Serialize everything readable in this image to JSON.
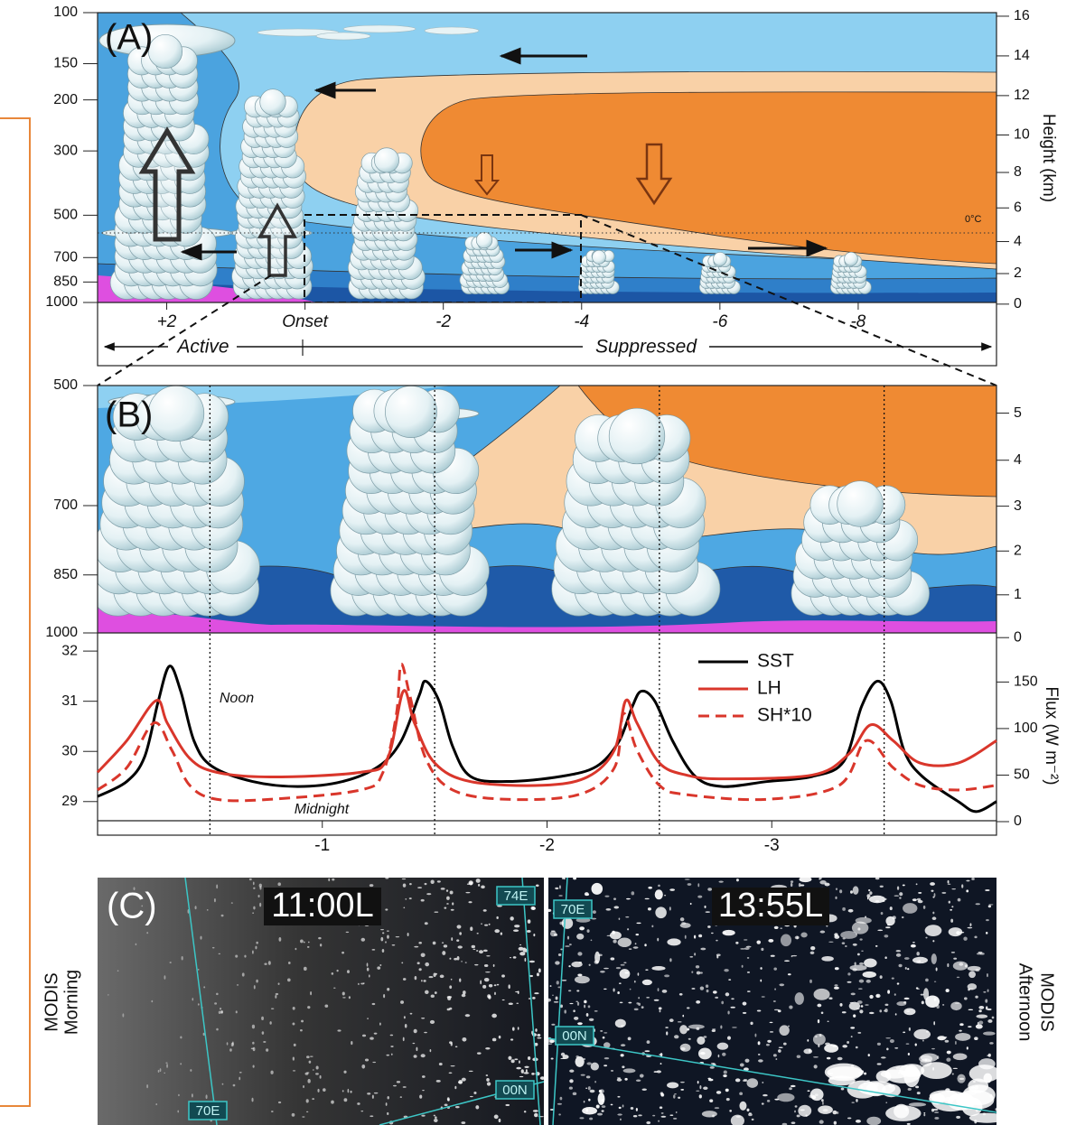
{
  "panel_a": {
    "label": "(A)",
    "pressure": {
      "lim": [
        100,
        1000
      ],
      "log": true,
      "ticks": [
        100,
        150,
        200,
        300,
        500,
        700,
        850,
        1000
      ]
    },
    "height": {
      "label": "Height (km)",
      "ticks": [
        0,
        2,
        4,
        6,
        8,
        10,
        12,
        14,
        16
      ]
    },
    "days": {
      "lim": [
        3,
        -10
      ],
      "ticks": [
        {
          "value": 2,
          "label": "+2"
        },
        {
          "value": 0,
          "label": "Onset"
        },
        -2,
        -4,
        -6,
        -8
      ]
    },
    "freezing_level": "0°C",
    "active": "Active",
    "suppressed": "Suppressed"
  },
  "panel_b": {
    "label": "(B)",
    "pressure": {
      "lim": [
        500,
        1000
      ],
      "log": true,
      "ticks": [
        500,
        700,
        850,
        1000
      ]
    },
    "height": {
      "ticks": [
        0,
        1,
        2,
        3,
        4,
        5
      ]
    }
  },
  "chart_data": {
    "type": "line",
    "y2label": "Flux (W m⁻²)",
    "xlim": [
      0,
      -4
    ],
    "xticks": [
      -1,
      -2,
      -3
    ],
    "ylim": [
      28.6,
      32.2
    ],
    "yticks": [
      29,
      30,
      31,
      32
    ],
    "y2lim": [
      0,
      194
    ],
    "y2ticks": [
      0,
      50,
      100,
      150
    ],
    "vlines": [
      -0.5,
      -1.5,
      -2.5,
      -3.5
    ],
    "annotations": [
      "Noon",
      "Midnight"
    ],
    "legend": "upper right",
    "series": [
      {
        "name": "SST",
        "color": "#000000",
        "linestyle": "solid",
        "x": [
          0,
          -0.13,
          -0.21,
          -0.27,
          -0.32,
          -0.37,
          -0.43,
          -0.51,
          -0.69,
          -0.89,
          -1.09,
          -1.25,
          -1.35,
          -1.43,
          -1.46,
          -1.52,
          -1.58,
          -1.66,
          -1.82,
          -2.06,
          -2.22,
          -2.32,
          -2.38,
          -2.42,
          -2.48,
          -2.56,
          -2.66,
          -2.78,
          -2.98,
          -3.18,
          -3.32,
          -3.4,
          -3.47,
          -3.53,
          -3.59,
          -3.67,
          -3.83,
          -3.91,
          -4.0
        ],
        "values": [
          29.1,
          29.4,
          29.9,
          31.0,
          31.7,
          31.2,
          30.2,
          29.7,
          29.4,
          29.3,
          29.4,
          29.7,
          30.2,
          31.1,
          31.4,
          31.0,
          30.1,
          29.5,
          29.4,
          29.5,
          29.7,
          30.2,
          30.9,
          31.2,
          31.0,
          30.2,
          29.5,
          29.3,
          29.4,
          29.5,
          29.8,
          30.9,
          31.4,
          31.0,
          30.0,
          29.5,
          29.0,
          28.8,
          29.0
        ]
      },
      {
        "name": "LH",
        "color": "#d9362b",
        "linestyle": "solid",
        "axis": "y2",
        "x": [
          0,
          -0.13,
          -0.26,
          -0.31,
          -0.41,
          -0.53,
          -0.77,
          -1.17,
          -1.29,
          -1.36,
          -1.41,
          -1.5,
          -1.66,
          -1.98,
          -2.18,
          -2.3,
          -2.35,
          -2.4,
          -2.5,
          -2.62,
          -2.78,
          -3.18,
          -3.34,
          -3.44,
          -3.54,
          -3.66,
          -3.83,
          -4.0
        ],
        "values": [
          53,
          87,
          130,
          106,
          68,
          53,
          48,
          53,
          68,
          140,
          106,
          63,
          43,
          39,
          48,
          77,
          130,
          106,
          63,
          50,
          46,
          50,
          72,
          104,
          87,
          63,
          63,
          87
        ]
      },
      {
        "name": "SH*10",
        "color": "#d9362b",
        "linestyle": "dashed",
        "axis": "y2",
        "x": [
          0,
          -0.13,
          -0.25,
          -0.33,
          -0.41,
          -0.53,
          -0.77,
          -1.17,
          -1.27,
          -1.33,
          -1.35,
          -1.39,
          -1.46,
          -1.58,
          -1.82,
          -2.14,
          -2.3,
          -2.34,
          -2.4,
          -2.5,
          -2.62,
          -2.98,
          -3.3,
          -3.42,
          -3.54,
          -3.66,
          -3.83,
          -4.0
        ],
        "values": [
          34,
          58,
          106,
          77,
          39,
          24,
          24,
          34,
          53,
          116,
          169,
          135,
          68,
          34,
          24,
          29,
          58,
          116,
          77,
          39,
          29,
          24,
          39,
          87,
          58,
          39,
          34,
          39
        ]
      }
    ]
  },
  "panel_c": {
    "label": "(C)",
    "morning_time": "11:00L",
    "afternoon_time": "13:55L",
    "morning_title": [
      "MODIS",
      "Morning"
    ],
    "afternoon_title": [
      "MODIS",
      "Afternoon"
    ],
    "morning_grid": [
      "74E",
      "00N",
      "70E"
    ],
    "afternoon_grid": [
      "70E",
      "00N"
    ]
  }
}
